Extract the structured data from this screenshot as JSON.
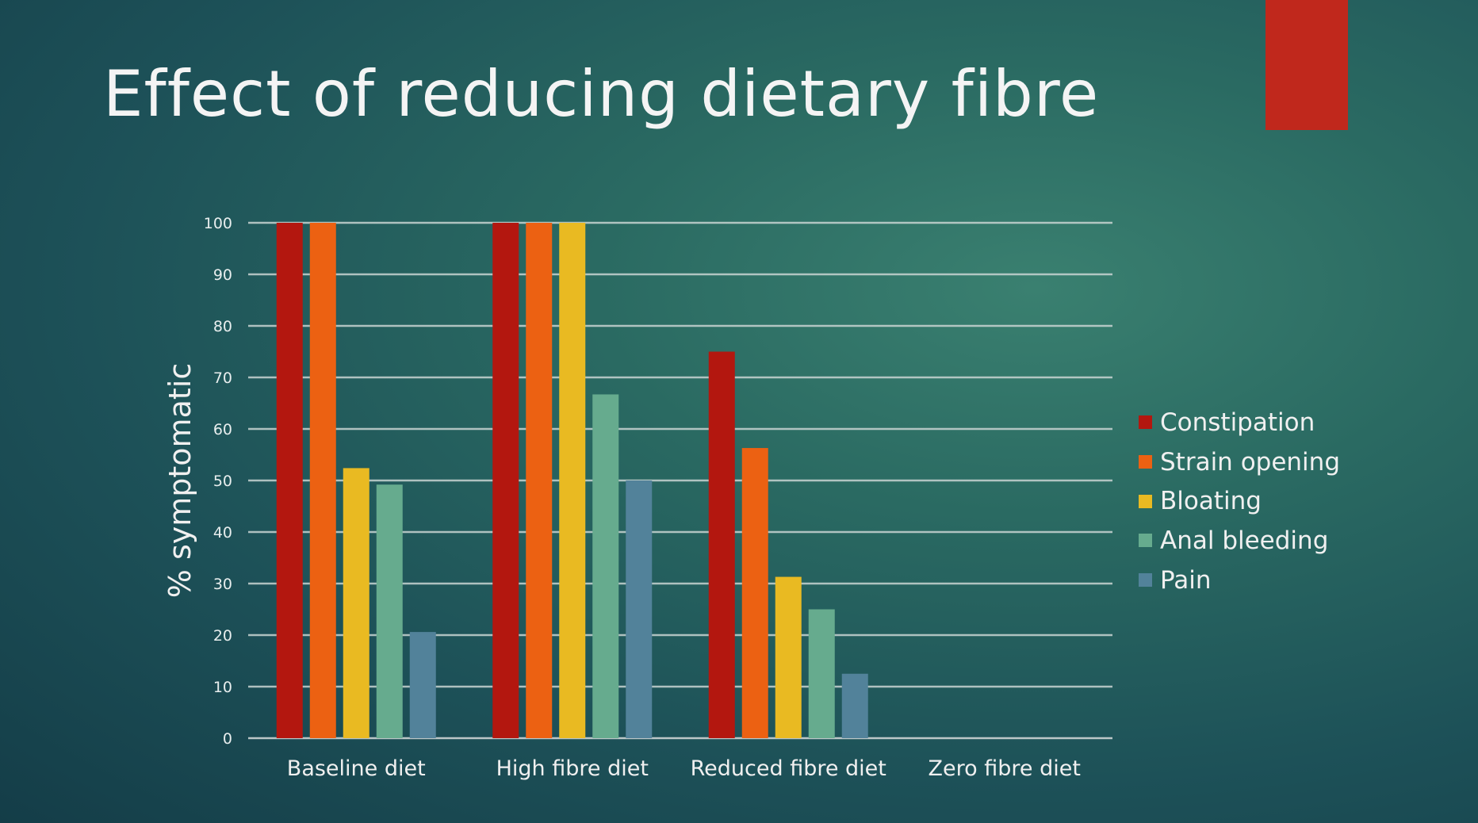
{
  "slide": {
    "title": "Effect of reducing dietary fibre",
    "accent_color": "#c0281c"
  },
  "chart_data": {
    "type": "bar",
    "title": "Effect of reducing dietary fibre",
    "xlabel": "",
    "ylabel": "% symptomatic",
    "ylim": [
      0,
      100
    ],
    "yticks": [
      "0",
      "10",
      "20",
      "30",
      "40",
      "50",
      "60",
      "70",
      "80",
      "90",
      "100"
    ],
    "grid": true,
    "legend_position": "right",
    "categories": [
      "Baseline diet",
      "High fibre diet",
      "Reduced fibre diet",
      "Zero fibre diet"
    ],
    "series": [
      {
        "name": "Constipation",
        "color": "#b3170f",
        "values": [
          100,
          100,
          75,
          0
        ]
      },
      {
        "name": "Strain opening",
        "color": "#ec6112",
        "values": [
          100,
          100,
          56.3,
          0
        ]
      },
      {
        "name": "Bloating",
        "color": "#e9ba22",
        "values": [
          52.4,
          100,
          31.3,
          0
        ]
      },
      {
        "name": "Anal bleeding",
        "color": "#66ab8e",
        "values": [
          49.2,
          66.7,
          25,
          0
        ]
      },
      {
        "name": "Pain",
        "color": "#52829a",
        "values": [
          20.6,
          50,
          12.5,
          0
        ]
      }
    ]
  }
}
